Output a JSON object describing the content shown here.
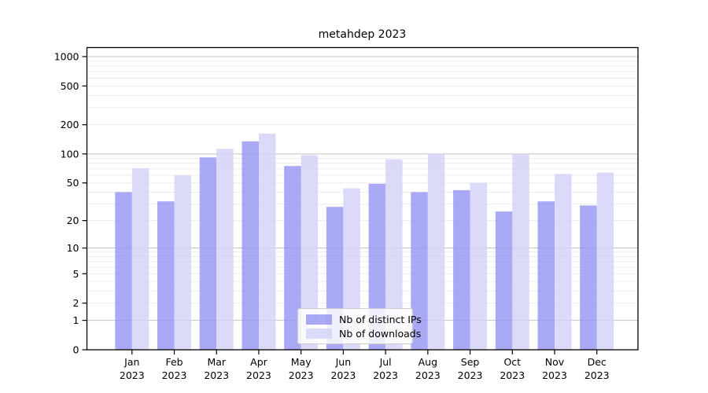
{
  "title": "metahdep 2023",
  "chart_data": {
    "type": "bar",
    "title": "metahdep 2023",
    "scale": "log1p",
    "grid": true,
    "legend_position": "lower center",
    "categories": [
      "Jan",
      "Feb",
      "Mar",
      "Apr",
      "May",
      "Jun",
      "Jul",
      "Aug",
      "Sep",
      "Oct",
      "Nov",
      "Dec"
    ],
    "year_label": "2023",
    "series": [
      {
        "name": "Nb of distinct IPs",
        "color": "#9494f3",
        "values": [
          40,
          32,
          92,
          135,
          75,
          28,
          49,
          40,
          42,
          25,
          32,
          29
        ]
      },
      {
        "name": "Nb of downloads",
        "color": "#d2d2f8",
        "values": [
          71,
          60,
          113,
          162,
          97,
          44,
          88,
          101,
          50,
          100,
          62,
          64
        ]
      }
    ],
    "y_ticks": [
      0,
      1,
      2,
      5,
      10,
      20,
      50,
      100,
      200,
      500,
      1000
    ],
    "ylim": [
      0,
      1000
    ],
    "colors": {
      "major_grid": "#c3c3c3",
      "minor_grid": "#ececec",
      "axis": "#000000",
      "text": "#000000"
    }
  }
}
